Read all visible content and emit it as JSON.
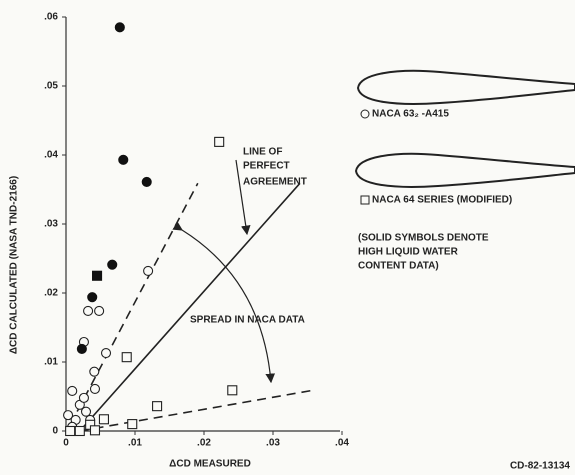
{
  "chart_data": {
    "type": "scatter",
    "xlabel": "ΔCD MEASURED",
    "ylabel": "ΔCD CALCULATED (NASA TND-2166)",
    "xlim": [
      0,
      0.04
    ],
    "ylim": [
      0,
      0.06
    ],
    "xticks": [
      0,
      {
        "value": 0.01,
        "label": ".01"
      },
      {
        "value": 0.02,
        "label": ".02"
      },
      {
        "value": 0.03,
        "label": ".03"
      },
      {
        "value": 0.04,
        "label": ".04"
      }
    ],
    "yticks": [
      0,
      {
        "value": 0.01,
        "label": ".01"
      },
      {
        "value": 0.02,
        "label": ".02"
      },
      {
        "value": 0.03,
        "label": ".03"
      },
      {
        "value": 0.04,
        "label": ".04"
      },
      {
        "value": 0.05,
        "label": ".05"
      },
      {
        "value": 0.06,
        "label": ".06"
      }
    ],
    "series": [
      {
        "marker": "circle",
        "filled": false,
        "color": "#222222",
        "x": [
          0.0119,
          0.0032,
          0.0048,
          0.0026,
          0.0058,
          0.0041,
          0.0042,
          0.0009,
          0.002,
          0.0029,
          0.0003,
          0.0014,
          0.0035,
          0.0009,
          0.0026
        ],
        "y": [
          0.0232,
          0.0174,
          0.0174,
          0.0129,
          0.0113,
          0.0086,
          0.0061,
          0.0058,
          0.0038,
          0.0028,
          0.0023,
          0.0016,
          0.0016,
          0.0006,
          0.0048
        ]
      },
      {
        "marker": "circle",
        "filled": true,
        "color": "#111111",
        "x": [
          0.0078,
          0.0083,
          0.0117,
          0.0067,
          0.0038,
          0.0023
        ],
        "y": [
          0.0585,
          0.0393,
          0.0361,
          0.0241,
          0.0194,
          0.0119
        ]
      },
      {
        "marker": "square",
        "filled": false,
        "color": "#222222",
        "x": [
          0.0222,
          0.0088,
          0.0132,
          0.0241,
          0.0055,
          0.0096,
          0.0006,
          0.002,
          0.0035,
          0.0042
        ],
        "y": [
          0.0419,
          0.0107,
          0.0036,
          0.0059,
          0.0017,
          0.001,
          0,
          0,
          0.0009,
          0.0001
        ]
      },
      {
        "marker": "square",
        "filled": true,
        "color": "#111111",
        "x": [
          0.0045
        ],
        "y": [
          0.0225
        ]
      }
    ],
    "reference_lines": [
      {
        "dashed": false,
        "x": [
          0.002,
          0.0339
        ],
        "y": [
          0,
          0.0359
        ]
      },
      {
        "dashed": true,
        "x": [
          0.0006,
          0.0191
        ],
        "y": [
          0.0009,
          0.0359
        ]
      },
      {
        "dashed": true,
        "x": [
          0.002,
          0.0358
        ],
        "y": [
          0,
          0.0059
        ]
      }
    ],
    "legend": [
      "NACA 63₂ -A415",
      "NACA 64 SERIES (MODIFIED)"
    ],
    "annotations": [
      "LINE OF",
      "PERFECT",
      "AGREEMENT",
      "SPREAD IN NACA DATA",
      "(SOLID SYMBOLS DENOTE",
      "HIGH LIQUID WATER",
      "CONTENT DATA)",
      "CD-82-13134"
    ]
  }
}
